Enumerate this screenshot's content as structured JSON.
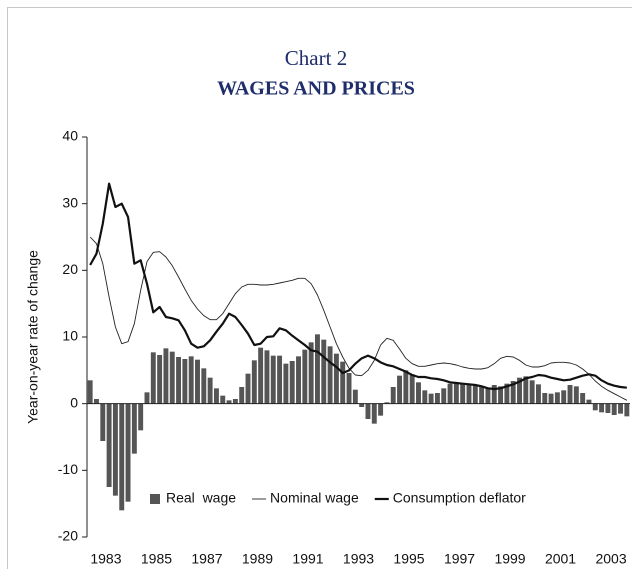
{
  "chart_data": {
    "type": "bar-line",
    "title": "Chart 2",
    "subtitle": "WAGES AND PRICES",
    "y_label": "Year-on-year rate of change",
    "x": [
      1982.375,
      1982.625,
      1982.875,
      1983.125,
      1983.375,
      1983.625,
      1983.875,
      1984.125,
      1984.375,
      1984.625,
      1984.875,
      1985.125,
      1985.375,
      1985.625,
      1985.875,
      1986.125,
      1986.375,
      1986.625,
      1986.875,
      1987.125,
      1987.375,
      1987.625,
      1987.875,
      1988.125,
      1988.375,
      1988.625,
      1988.875,
      1989.125,
      1989.375,
      1989.625,
      1989.875,
      1990.125,
      1990.375,
      1990.625,
      1990.875,
      1991.125,
      1991.375,
      1991.625,
      1991.875,
      1992.125,
      1992.375,
      1992.625,
      1992.875,
      1993.125,
      1993.375,
      1993.625,
      1993.875,
      1994.125,
      1994.375,
      1994.625,
      1994.875,
      1995.125,
      1995.375,
      1995.625,
      1995.875,
      1996.125,
      1996.375,
      1996.625,
      1996.875,
      1997.125,
      1997.375,
      1997.625,
      1997.875,
      1998.125,
      1998.375,
      1998.625,
      1998.875,
      1999.125,
      1999.375,
      1999.625,
      1999.875,
      2000.125,
      2000.375,
      2000.625,
      2000.875,
      2001.125,
      2001.375,
      2001.625,
      2001.875,
      2002.125,
      2002.375,
      2002.625,
      2002.875,
      2003.125,
      2003.375,
      2003.625
    ],
    "series": [
      {
        "name": "Real  wage",
        "type": "bar",
        "color": "#555555",
        "values": [
          3.5,
          0.7,
          -5.6,
          -12.5,
          -13.8,
          -16,
          -14.7,
          -7.5,
          -4,
          1.7,
          7.7,
          7.3,
          8.3,
          7.8,
          7.0,
          6.7,
          7.1,
          6.6,
          5.3,
          3.9,
          2.3,
          1.2,
          0.5,
          0.7,
          2.5,
          4.5,
          6.5,
          8.4,
          8.0,
          7.2,
          7.2,
          6.0,
          6.4,
          7.1,
          8.1,
          9.2,
          10.4,
          9.6,
          8.6,
          7.5,
          6.3,
          4.6,
          2.1,
          -0.5,
          -2.3,
          -3.0,
          -1.8,
          0.2,
          2.5,
          4.2,
          5.0,
          4.4,
          3.2,
          2.0,
          1.5,
          1.6,
          2.3,
          3.0,
          3.2,
          3.0,
          2.9,
          2.7,
          2.5,
          2.3,
          2.8,
          2.6,
          3.0,
          3.4,
          3.9,
          4.1,
          3.5,
          2.9,
          1.6,
          1.5,
          1.7,
          2.0,
          2.8,
          2.6,
          1.6,
          0.6,
          -1.0,
          -1.3,
          -1.4,
          -1.7,
          -1.5,
          -1.9
        ]
      },
      {
        "name": "Nominal wage",
        "type": "line",
        "color": "#222222",
        "line_width": 0.9,
        "values": [
          25,
          24,
          21,
          16,
          11.5,
          9,
          9.3,
          12,
          17,
          21.3,
          22.7,
          22.8,
          22,
          20.7,
          19,
          17.2,
          15.5,
          14.2,
          13.2,
          12.6,
          12.6,
          13.5,
          15,
          16.5,
          17.5,
          17.9,
          17.9,
          17.8,
          17.8,
          17.9,
          18.1,
          18.3,
          18.5,
          18.8,
          18.8,
          18.0,
          16.3,
          14,
          11.5,
          9,
          7,
          5.3,
          4.3,
          4.2,
          5.0,
          6.5,
          8.8,
          9.8,
          9.5,
          8.2,
          6.8,
          6.0,
          5.6,
          5.6,
          5.8,
          6.0,
          6.1,
          6.0,
          5.8,
          5.5,
          5.3,
          5.2,
          5.2,
          5.4,
          6.0,
          6.8,
          7.1,
          7.0,
          6.5,
          5.8,
          5.5,
          5.5,
          5.7,
          6.1,
          6.2,
          6.2,
          6.1,
          5.8,
          5.2,
          4.4,
          3.4,
          2.6,
          2.0,
          1.5,
          1.0,
          0.5
        ]
      },
      {
        "name": "Consumption deflator",
        "type": "line",
        "color": "#111111",
        "line_width": 2.2,
        "values": [
          20.8,
          22.5,
          27,
          33,
          29.5,
          30,
          28,
          21,
          21.5,
          18,
          13.7,
          14.5,
          13,
          12.8,
          12.5,
          11,
          9,
          8.4,
          8.6,
          9.5,
          10.8,
          12,
          13.5,
          13,
          11.8,
          10.5,
          8.8,
          9,
          10,
          10.1,
          11.3,
          11,
          10.2,
          9.5,
          8.8,
          8.0,
          7.8,
          7.0,
          6.2,
          5.5,
          4.6,
          5.0,
          6.0,
          6.8,
          7.2,
          6.8,
          6.2,
          5.8,
          5.6,
          5.2,
          4.8,
          4.3,
          4.0,
          4.0,
          3.8,
          3.7,
          3.5,
          3.2,
          3.1,
          3.0,
          2.9,
          2.8,
          2.6,
          2.3,
          2.2,
          2.3,
          2.6,
          2.9,
          3.3,
          3.8,
          4.0,
          4.3,
          4.2,
          3.9,
          3.7,
          3.5,
          3.6,
          3.9,
          4.2,
          4.4,
          4.2,
          3.5,
          3.0,
          2.7,
          2.5,
          2.4
        ]
      }
    ],
    "xlim": [
      1982.25,
      2003.75
    ],
    "xticks": [
      1983,
      1985,
      1987,
      1989,
      1991,
      1993,
      1995,
      1997,
      1999,
      2001,
      2003
    ],
    "ylim": [
      -20,
      40
    ],
    "yticks": [
      -20,
      -10,
      0,
      10,
      20,
      30,
      40
    ],
    "grid": false,
    "legend": "bottom"
  }
}
